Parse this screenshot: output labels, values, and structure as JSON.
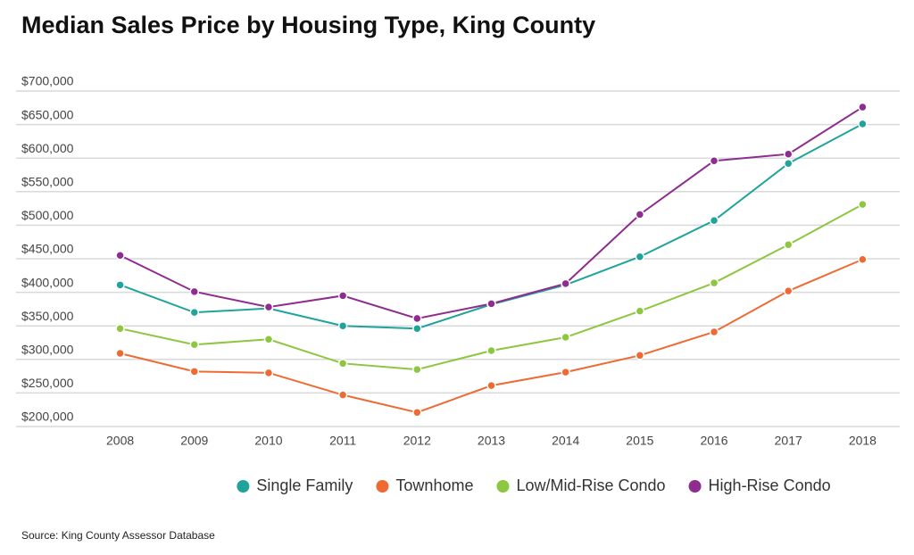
{
  "chart_data": {
    "type": "line",
    "title": "Median Sales Price by Housing Type, King County",
    "source": "Source: King County Assessor Database",
    "categories": [
      "2008",
      "2009",
      "2010",
      "2011",
      "2012",
      "2013",
      "2014",
      "2015",
      "2016",
      "2017",
      "2018"
    ],
    "series": [
      {
        "name": "Single Family",
        "color": "#1fa39b",
        "values": [
          411000,
          370000,
          376000,
          350000,
          346000,
          382000,
          411000,
          453000,
          507000,
          592000,
          651000
        ]
      },
      {
        "name": "Townhome",
        "color": "#ef6a33",
        "values": [
          309000,
          282000,
          280000,
          247000,
          221000,
          261000,
          281000,
          306000,
          341000,
          402000,
          449000
        ]
      },
      {
        "name": "Low/Mid-Rise Condo",
        "color": "#8dc63f",
        "values": [
          346000,
          322000,
          330000,
          294000,
          285000,
          313000,
          333000,
          372000,
          414000,
          471000,
          531000
        ]
      },
      {
        "name": "High-Rise Condo",
        "color": "#8e2c8f",
        "values": [
          455000,
          401000,
          378000,
          395000,
          361000,
          383000,
          413000,
          516000,
          596000,
          606000,
          676000
        ]
      }
    ],
    "ylim": [
      200000,
      700000
    ],
    "yticks": [
      {
        "value": 200000,
        "label": "$200,000"
      },
      {
        "value": 250000,
        "label": "$250,000"
      },
      {
        "value": 300000,
        "label": "$300,000"
      },
      {
        "value": 350000,
        "label": "$350,000"
      },
      {
        "value": 400000,
        "label": "$400,000"
      },
      {
        "value": 450000,
        "label": "$450,000"
      },
      {
        "value": 500000,
        "label": "$500,000"
      },
      {
        "value": 550000,
        "label": "$550,000"
      },
      {
        "value": 600000,
        "label": "$600,000"
      },
      {
        "value": 650000,
        "label": "$650,000"
      },
      {
        "value": 700000,
        "label": "$700,000"
      }
    ],
    "grid": true,
    "legend": "bottom"
  }
}
